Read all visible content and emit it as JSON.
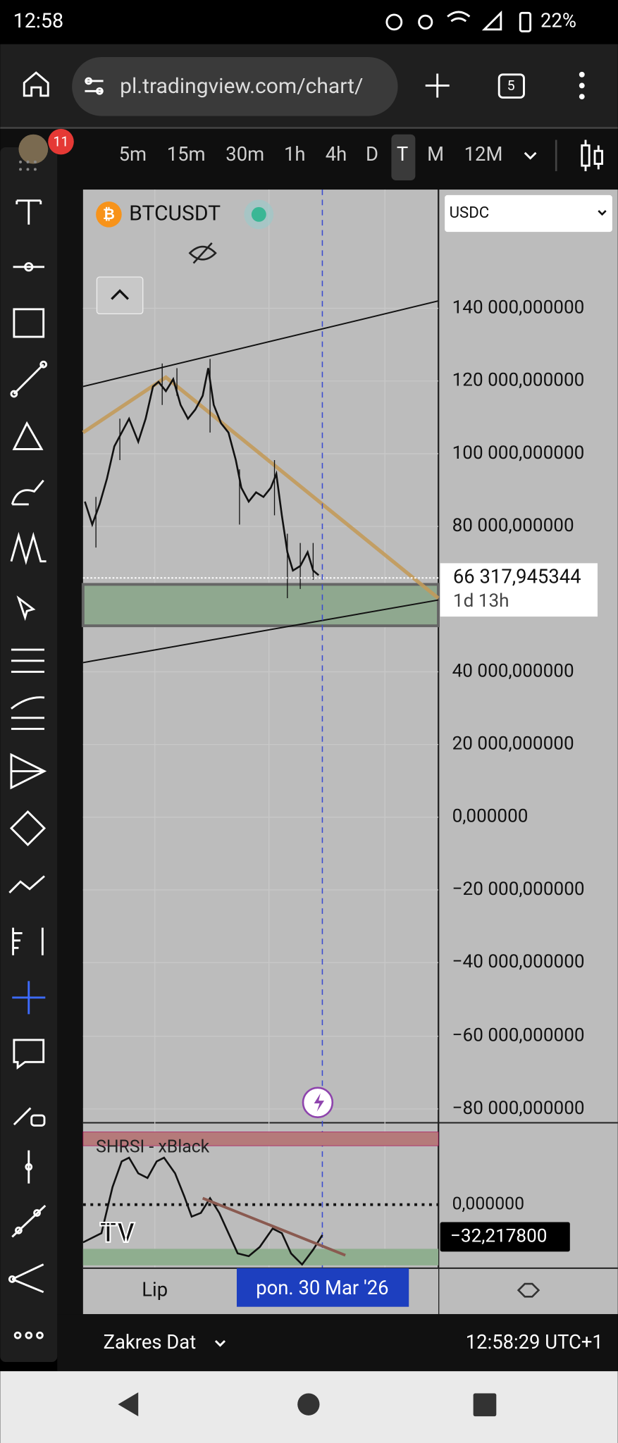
{
  "status_bar": {
    "time": "12:58",
    "battery": "22%"
  },
  "browser": {
    "url": "pl.tradingview.com/chart/",
    "tab_count": "5"
  },
  "toolbar": {
    "badge": "11",
    "intervals": [
      "5m",
      "15m",
      "30m",
      "1h",
      "4h",
      "D",
      "T",
      "M",
      "12M"
    ]
  },
  "chart": {
    "symbol": "BTCUSDT",
    "currency": "USDC",
    "price_labels": [
      "140 000,000000",
      "120 000,000000",
      "100 000,000000",
      "80 000,000000",
      "40 000,000000",
      "20 000,000000",
      "0,000000",
      "−20 000,000000",
      "−40 000,000000",
      "−60 000,000000",
      "−80 000,000000"
    ],
    "last_price": "66 317,945344",
    "countdown": "1d 13h"
  },
  "indicator": {
    "name": "SHRSI - xBlack",
    "level": "0,000000",
    "value": "−32,217800"
  },
  "time_axis": {
    "labels": [
      "Lip",
      "pon. 30 Mar '26"
    ]
  },
  "bottom_bar": {
    "range": "Zakres Dat",
    "clock": "12:58:29 UTC+1"
  }
}
